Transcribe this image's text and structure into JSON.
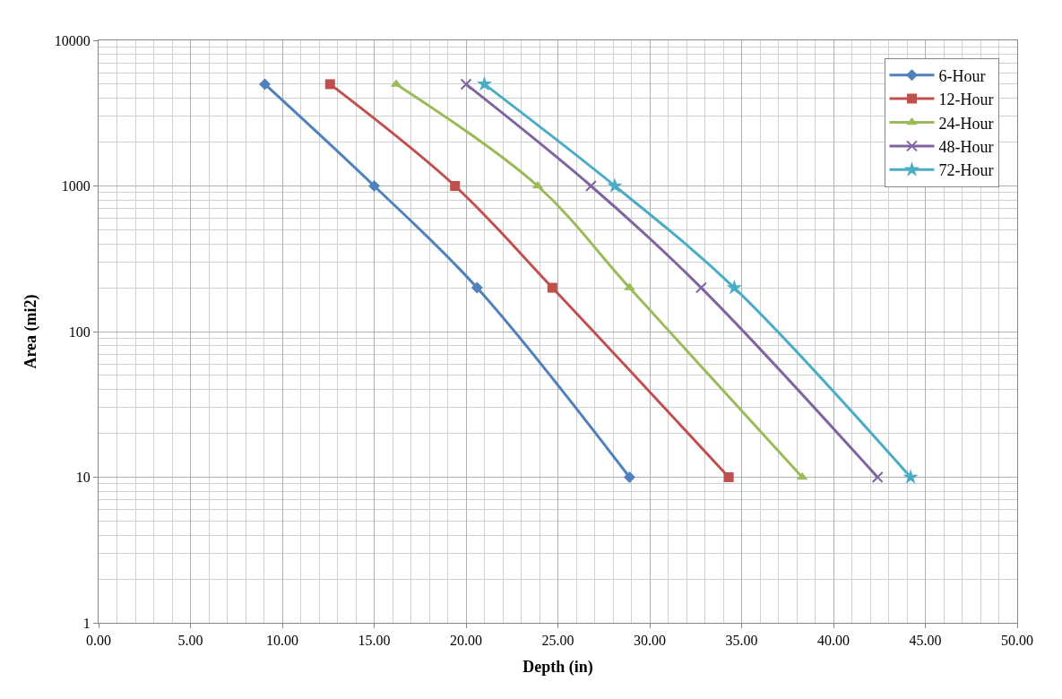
{
  "chart_data": {
    "type": "line",
    "xlabel": "Depth (in)",
    "ylabel": "Area (mi2)",
    "log": "y",
    "grid": true,
    "legend": "top right",
    "xlim": [
      0,
      50
    ],
    "xticks": [
      {
        "value": 0,
        "label": "0.00"
      },
      {
        "value": 5,
        "label": "5.00"
      },
      {
        "value": 10,
        "label": "10.00"
      },
      {
        "value": 15,
        "label": "15.00"
      },
      {
        "value": 20,
        "label": "20.00"
      },
      {
        "value": 25,
        "label": "25.00"
      },
      {
        "value": 30,
        "label": "30.00"
      },
      {
        "value": 35,
        "label": "35.00"
      },
      {
        "value": 40,
        "label": "40.00"
      },
      {
        "value": 45,
        "label": "45.00"
      },
      {
        "value": 50,
        "label": "50.00"
      }
    ],
    "ylim": [
      1,
      10000
    ],
    "yticks": [
      1,
      10,
      100,
      1000,
      10000
    ],
    "series": [
      {
        "name": "6-Hour",
        "color": "#4f81bd",
        "marker": "diamond",
        "x": [
          9.05,
          15.0,
          20.6,
          28.9
        ],
        "values": [
          5000,
          1000,
          200,
          10
        ]
      },
      {
        "name": "12-Hour",
        "color": "#c0504d",
        "marker": "square",
        "x": [
          12.6,
          19.4,
          24.7,
          34.3
        ],
        "values": [
          5000,
          1000,
          200,
          10
        ]
      },
      {
        "name": "24-Hour",
        "color": "#9bbb59",
        "marker": "triangle",
        "x": [
          16.2,
          23.9,
          28.9,
          38.3
        ],
        "values": [
          5000,
          1000,
          200,
          10
        ]
      },
      {
        "name": "48-Hour",
        "color": "#8064a2",
        "marker": "cross",
        "x": [
          20.0,
          26.8,
          32.8,
          42.4
        ],
        "values": [
          5000,
          1000,
          200,
          10
        ]
      },
      {
        "name": "72-Hour",
        "color": "#4bacc6",
        "marker": "star",
        "x": [
          21.0,
          28.1,
          34.6,
          44.2
        ],
        "values": [
          5000,
          1000,
          200,
          10
        ]
      }
    ]
  }
}
